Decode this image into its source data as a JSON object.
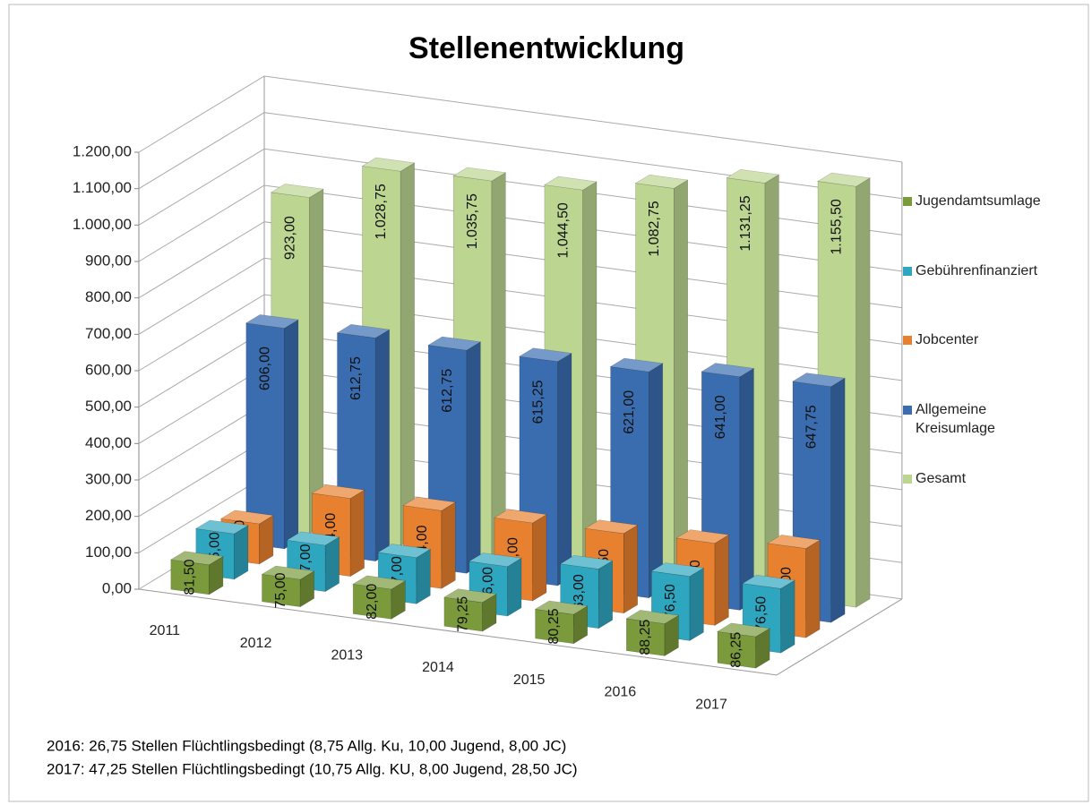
{
  "chart_data": {
    "type": "bar3d",
    "title": "Stellenentwicklung",
    "categories": [
      "2011",
      "2012",
      "2013",
      "2014",
      "2015",
      "2016",
      "2017"
    ],
    "series": [
      {
        "name": "Jugendamtsumlage",
        "color": "#7a9a3c",
        "values": [
          81.5,
          75,
          82,
          79.25,
          80.25,
          88.25,
          86.25
        ],
        "value_labels": [
          "81,50",
          "75,00",
          "82,00",
          "79,25",
          "80,25",
          "88,25",
          "86,25"
        ]
      },
      {
        "name": "Gebührenfinanziert",
        "color": "#2fa6c0",
        "values": [
          125,
          127,
          127,
          136,
          163,
          176.5,
          176.5
        ],
        "value_labels": [
          "125,00",
          "127,00",
          "127,00",
          "136,00",
          "163,00",
          "176,50",
          "176,50"
        ]
      },
      {
        "name": "Jobcenter",
        "color": "#e8812f",
        "values": [
          110.5,
          214,
          214,
          214,
          218.5,
          225.5,
          245
        ],
        "value_labels": [
          "110,50",
          "214,00",
          "214,00",
          "214,00",
          "218,50",
          "225,50",
          "245,00"
        ]
      },
      {
        "name": "Allgemeine Kreisumlage",
        "color": "#3a6db0",
        "values": [
          606,
          612.75,
          612.75,
          615.25,
          621,
          641,
          647.75
        ],
        "value_labels": [
          "606,00",
          "612,75",
          "612,75",
          "615,25",
          "621,00",
          "641,00",
          "647,75"
        ]
      },
      {
        "name": "Gesamt",
        "color": "#bcd591",
        "values": [
          923,
          1028.75,
          1035.75,
          1044.5,
          1082.75,
          1131.25,
          1155.5
        ],
        "value_labels": [
          "923,00",
          "1.028,75",
          "1.035,75",
          "1.044,50",
          "1.082,75",
          "1.131,25",
          "1.155,50"
        ]
      }
    ],
    "ylim": [
      0,
      1200
    ],
    "yticks": [
      {
        "value": 0,
        "label": "0,00"
      },
      {
        "value": 100,
        "label": "100,00"
      },
      {
        "value": 200,
        "label": "200,00"
      },
      {
        "value": 300,
        "label": "300,00"
      },
      {
        "value": 400,
        "label": "400,00"
      },
      {
        "value": 500,
        "label": "500,00"
      },
      {
        "value": 600,
        "label": "600,00"
      },
      {
        "value": 700,
        "label": "700,00"
      },
      {
        "value": 800,
        "label": "800,00"
      },
      {
        "value": 900,
        "label": "900,00"
      },
      {
        "value": 1000,
        "label": "1.000,00"
      },
      {
        "value": 1100,
        "label": "1.100,00"
      },
      {
        "value": 1200,
        "label": "1.200,00"
      }
    ],
    "grid": true,
    "legend": "right",
    "annotations": [
      "2016: 26,75 Stellen Flüchtlingsbedingt  (8,75 Allg.  Ku, 10,00 Jugend, 8,00 JC)",
      "2017: 47,25 Stellen Flüchtlingsbedingt  (10,75 Allg.  KU, 8,00 Jugend, 28,50 JC)"
    ]
  }
}
